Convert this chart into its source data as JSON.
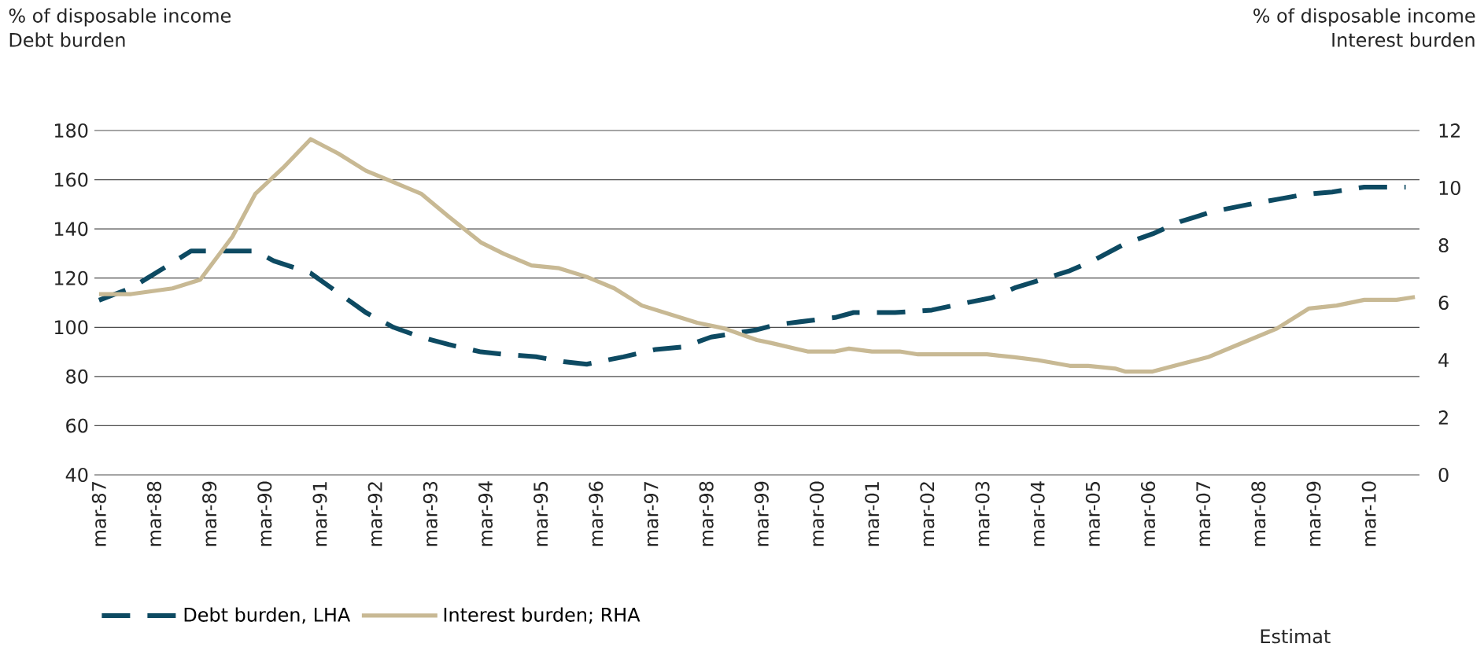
{
  "chart_data": {
    "type": "line",
    "ylabel": "% of disposable income Debt burden",
    "y2label": "% of disposable income Interest burden",
    "annotations": [
      "Estimat"
    ],
    "series": [
      {
        "name": "Debt burden, LHA",
        "color": "#0d4a62",
        "line_style": "dashed",
        "x": [
          "1987-03",
          "1987-10",
          "1988-05",
          "1988-11",
          "1989-07",
          "1990-01",
          "1990-05",
          "1991-01",
          "1991-07",
          "1992-01",
          "1992-07",
          "1993-01",
          "1993-07",
          "1994-02",
          "1994-07",
          "1995-02",
          "1995-08",
          "1996-01",
          "1996-09",
          "1997-04",
          "1997-10",
          "1998-04",
          "1999-02",
          "1999-06",
          "2000-07",
          "2000-11",
          "2001-08",
          "2002-04",
          "2002-09",
          "2003-05",
          "2003-10",
          "2004-10",
          "2005-03",
          "2005-10",
          "2006-04",
          "2006-10",
          "2007-05",
          "2008-01",
          "2008-07",
          "2009-01",
          "2009-07",
          "2010-02",
          "2010-11"
        ],
        "values": [
          111,
          116,
          124,
          131,
          131,
          131,
          127,
          122,
          114,
          106,
          100,
          96,
          93,
          90,
          89,
          88,
          86,
          85,
          88,
          91,
          92,
          96,
          99,
          101,
          104,
          106,
          106,
          107,
          109,
          112,
          116,
          123,
          127,
          134,
          138,
          143,
          147,
          150,
          152,
          154,
          155,
          157,
          157
        ]
      },
      {
        "name": "Interest burden; RHA",
        "color": "#c8b994",
        "line_style": "solid",
        "axis": "y2",
        "x": [
          "1987-03",
          "1987-10",
          "1988-07",
          "1989-01",
          "1989-08",
          "1990-01",
          "1990-07",
          "1991-01",
          "1991-07",
          "1992-01",
          "1992-07",
          "1993-01",
          "1993-07",
          "1994-02",
          "1994-07",
          "1995-01",
          "1995-07",
          "1996-01",
          "1996-07",
          "1997-01",
          "1997-07",
          "1998-01",
          "1998-07",
          "1999-02",
          "1999-05",
          "2000-01",
          "2000-07",
          "2000-10",
          "2001-03",
          "2001-09",
          "2002-01",
          "2003-04",
          "2003-10",
          "2004-03",
          "2004-10",
          "2005-02",
          "2005-08",
          "2005-10",
          "2006-04",
          "2006-11",
          "2007-04",
          "2007-10",
          "2008-07",
          "2009-02",
          "2009-08",
          "2010-02",
          "2010-09",
          "2011-01"
        ],
        "values": [
          6.3,
          6.3,
          6.5,
          6.8,
          8.3,
          9.8,
          10.7,
          11.7,
          11.2,
          10.6,
          10.2,
          9.8,
          9.0,
          8.1,
          7.7,
          7.3,
          7.2,
          6.9,
          6.5,
          5.9,
          5.6,
          5.3,
          5.1,
          4.7,
          4.6,
          4.3,
          4.3,
          4.4,
          4.3,
          4.3,
          4.2,
          4.2,
          4.1,
          4.0,
          3.8,
          3.8,
          3.7,
          3.6,
          3.6,
          3.9,
          4.1,
          4.5,
          5.1,
          5.8,
          5.9,
          6.1,
          6.1,
          6.2
        ]
      }
    ],
    "xlim": [
      "1987-02",
      "2011-02"
    ],
    "xticks": [
      {
        "value": "1987-03",
        "label": "mar-87"
      },
      {
        "value": "1988-03",
        "label": "mar-88"
      },
      {
        "value": "1989-03",
        "label": "mar-89"
      },
      {
        "value": "1990-03",
        "label": "mar-90"
      },
      {
        "value": "1991-03",
        "label": "mar-91"
      },
      {
        "value": "1992-03",
        "label": "mar-92"
      },
      {
        "value": "1993-03",
        "label": "mar-93"
      },
      {
        "value": "1994-03",
        "label": "mar-94"
      },
      {
        "value": "1995-03",
        "label": "mar-95"
      },
      {
        "value": "1996-03",
        "label": "mar-96"
      },
      {
        "value": "1997-03",
        "label": "mar-97"
      },
      {
        "value": "1998-03",
        "label": "mar-98"
      },
      {
        "value": "1999-03",
        "label": "mar-99"
      },
      {
        "value": "2000-03",
        "label": "mar-00"
      },
      {
        "value": "2001-03",
        "label": "mar-01"
      },
      {
        "value": "2002-03",
        "label": "mar-02"
      },
      {
        "value": "2003-03",
        "label": "mar-03"
      },
      {
        "value": "2004-03",
        "label": "mar-04"
      },
      {
        "value": "2005-03",
        "label": "mar-05"
      },
      {
        "value": "2006-03",
        "label": "mar-06"
      },
      {
        "value": "2007-03",
        "label": "mar-07"
      },
      {
        "value": "2008-03",
        "label": "mar-08"
      },
      {
        "value": "2009-03",
        "label": "mar-09"
      },
      {
        "value": "2010-03",
        "label": "mar-10"
      }
    ],
    "ylim": [
      40,
      180
    ],
    "yticks": [
      40,
      60,
      80,
      100,
      120,
      140,
      160,
      180
    ],
    "y2lim": [
      0,
      12
    ],
    "y2ticks": [
      0,
      2,
      4,
      6,
      8,
      10,
      12
    ],
    "grid": "y",
    "legend": "bottom left",
    "marker": "none"
  }
}
